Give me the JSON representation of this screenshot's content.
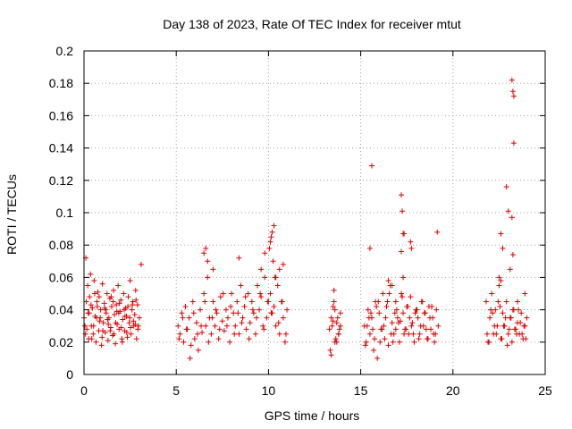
{
  "chart_data": {
    "type": "scatter",
    "title": "Day 138 of 2023, Rate Of TEC Index for receiver mtut",
    "xlabel": "GPS time / hours",
    "ylabel": "ROTI / TECUs",
    "xlim": [
      0,
      25
    ],
    "ylim": [
      0,
      0.2
    ],
    "xticks": [
      "0",
      "5",
      "10",
      "15",
      "20",
      "25"
    ],
    "yticks": [
      "0",
      "0.02",
      "0.04",
      "0.06",
      "0.08",
      "0.1",
      "0.12",
      "0.14",
      "0.16",
      "0.18",
      "0.2"
    ],
    "grid": true,
    "marker": "plus",
    "color": "#e00000",
    "series": [
      {
        "x": [
          0.0,
          0.1,
          0.15,
          0.2,
          0.25,
          0.3,
          0.35,
          0.4,
          0.45,
          0.5,
          0.55,
          0.6,
          0.65,
          0.7,
          0.75,
          0.8,
          0.85,
          0.9,
          0.95,
          1.0,
          1.05,
          1.1,
          1.15,
          1.2,
          1.25,
          1.3,
          1.35,
          1.4,
          1.45,
          1.5,
          1.55,
          1.6,
          1.65,
          1.7,
          1.75,
          1.8,
          1.85,
          1.9,
          1.95,
          2.0,
          2.05,
          2.1,
          2.15,
          2.2,
          2.25,
          2.3,
          2.35,
          2.4,
          2.45,
          2.5,
          2.55,
          2.6,
          2.65,
          2.7,
          2.75,
          2.8,
          2.85,
          2.9,
          3.0,
          3.1,
          0.05,
          0.12,
          0.28,
          0.42,
          0.58,
          0.72,
          0.88,
          1.02,
          1.18,
          1.32,
          1.48,
          1.62,
          1.78,
          1.92,
          2.08,
          2.22,
          2.38,
          2.52,
          2.68,
          2.82,
          2.95,
          0.08,
          0.22,
          0.38,
          0.52,
          0.68,
          0.82,
          0.98,
          1.12,
          1.28,
          1.42,
          1.58,
          1.72,
          1.88,
          2.02,
          2.18,
          2.32,
          2.48,
          2.62,
          2.78,
          2.92,
          5.1,
          5.2,
          5.3,
          5.4,
          5.5,
          5.6,
          5.7,
          5.8,
          5.9,
          6.0,
          6.1,
          6.2,
          6.3,
          6.4,
          6.5,
          6.6,
          6.7,
          6.8,
          6.9,
          7.0,
          7.1,
          7.2,
          7.3,
          7.4,
          7.5,
          7.6,
          7.7,
          7.8,
          7.9,
          8.0,
          8.1,
          8.2,
          8.3,
          8.4,
          8.5,
          8.6,
          8.7,
          8.8,
          8.9,
          9.0,
          9.1,
          9.2,
          9.3,
          9.4,
          9.5,
          9.6,
          9.7,
          9.8,
          9.9,
          10.0,
          10.1,
          10.2,
          10.3,
          10.4,
          10.5,
          10.6,
          10.7,
          10.8,
          10.9,
          11.0,
          5.15,
          5.35,
          5.55,
          5.75,
          5.95,
          6.15,
          6.35,
          6.55,
          6.75,
          6.95,
          7.15,
          7.35,
          7.55,
          7.75,
          7.95,
          8.15,
          8.35,
          8.55,
          8.75,
          8.95,
          9.15,
          9.35,
          9.55,
          9.75,
          9.95,
          10.15,
          10.35,
          10.55,
          10.75,
          10.95,
          6.5,
          6.6,
          6.7,
          7.0,
          8.4,
          9.6,
          9.8,
          10.1,
          10.2,
          10.3,
          10.05,
          10.15,
          10.25,
          10.4,
          10.6,
          10.8,
          13.3,
          13.4,
          13.5,
          13.6,
          13.7,
          13.8,
          13.9,
          13.35,
          13.45,
          13.55,
          13.65,
          13.75,
          13.85,
          13.4,
          13.6,
          13.8,
          13.5,
          13.7,
          13.9,
          13.55,
          15.2,
          15.3,
          15.4,
          15.5,
          15.6,
          15.7,
          15.8,
          15.9,
          16.0,
          16.1,
          16.2,
          16.3,
          16.4,
          16.5,
          16.6,
          16.7,
          16.8,
          16.9,
          17.0,
          17.1,
          17.2,
          17.3,
          17.4,
          17.5,
          17.6,
          17.7,
          17.8,
          17.9,
          18.0,
          18.1,
          18.2,
          18.3,
          18.4,
          18.5,
          18.6,
          18.7,
          18.8,
          18.9,
          19.0,
          19.1,
          19.2,
          15.25,
          15.45,
          15.65,
          15.85,
          16.05,
          16.25,
          16.45,
          16.65,
          16.85,
          17.05,
          17.25,
          17.45,
          17.65,
          17.85,
          18.05,
          18.25,
          18.45,
          18.65,
          18.85,
          19.05,
          15.35,
          15.55,
          15.75,
          15.95,
          16.15,
          16.35,
          16.55,
          16.75,
          16.95,
          17.15,
          17.35,
          17.55,
          17.75,
          17.95,
          18.15,
          18.35,
          18.55,
          18.75,
          18.95,
          19.15,
          15.5,
          15.6,
          17.2,
          17.25,
          17.3,
          17.35,
          17.7,
          17.75,
          17.2,
          17.3,
          16.5,
          16.7,
          16.9,
          21.8,
          21.9,
          22.0,
          22.1,
          22.2,
          22.3,
          22.4,
          22.5,
          22.6,
          22.7,
          22.8,
          22.9,
          23.0,
          23.1,
          23.2,
          23.3,
          23.4,
          23.5,
          23.6,
          23.7,
          23.8,
          23.9,
          24.0,
          21.85,
          22.05,
          22.25,
          22.45,
          22.65,
          22.85,
          23.05,
          23.25,
          23.45,
          23.65,
          23.85,
          21.95,
          22.15,
          22.35,
          22.55,
          22.75,
          22.95,
          23.15,
          23.35,
          23.55,
          23.75,
          23.95,
          22.6,
          22.7,
          22.9,
          23.0,
          23.2,
          23.25,
          23.3,
          23.3,
          23.2,
          23.25,
          23.1,
          22.5,
          22.6,
          23.5,
          23.9
        ],
        "y": [
          0.035,
          0.072,
          0.028,
          0.055,
          0.022,
          0.048,
          0.062,
          0.03,
          0.041,
          0.025,
          0.058,
          0.036,
          0.02,
          0.045,
          0.051,
          0.027,
          0.033,
          0.04,
          0.018,
          0.056,
          0.032,
          0.044,
          0.026,
          0.038,
          0.05,
          0.021,
          0.035,
          0.047,
          0.029,
          0.042,
          0.024,
          0.052,
          0.037,
          0.019,
          0.043,
          0.031,
          0.055,
          0.028,
          0.039,
          0.046,
          0.022,
          0.034,
          0.05,
          0.027,
          0.041,
          0.036,
          0.023,
          0.048,
          0.032,
          0.058,
          0.025,
          0.04,
          0.045,
          0.03,
          0.037,
          0.052,
          0.022,
          0.043,
          0.035,
          0.068,
          0.03,
          0.045,
          0.038,
          0.022,
          0.05,
          0.042,
          0.035,
          0.027,
          0.04,
          0.031,
          0.048,
          0.025,
          0.039,
          0.044,
          0.02,
          0.036,
          0.042,
          0.029,
          0.033,
          0.046,
          0.03,
          0.025,
          0.038,
          0.043,
          0.03,
          0.035,
          0.048,
          0.023,
          0.041,
          0.034,
          0.027,
          0.045,
          0.032,
          0.038,
          0.029,
          0.04,
          0.026,
          0.035,
          0.043,
          0.031,
          0.028,
          0.03,
          0.025,
          0.038,
          0.02,
          0.042,
          0.028,
          0.035,
          0.018,
          0.045,
          0.022,
          0.032,
          0.015,
          0.04,
          0.026,
          0.05,
          0.03,
          0.06,
          0.035,
          0.025,
          0.045,
          0.03,
          0.038,
          0.022,
          0.048,
          0.033,
          0.027,
          0.04,
          0.035,
          0.02,
          0.05,
          0.038,
          0.03,
          0.045,
          0.025,
          0.055,
          0.035,
          0.042,
          0.028,
          0.05,
          0.032,
          0.045,
          0.038,
          0.025,
          0.055,
          0.04,
          0.048,
          0.03,
          0.06,
          0.035,
          0.045,
          0.05,
          0.038,
          0.042,
          0.03,
          0.055,
          0.025,
          0.045,
          0.035,
          0.02,
          0.04,
          0.022,
          0.035,
          0.028,
          0.01,
          0.038,
          0.025,
          0.03,
          0.045,
          0.02,
          0.035,
          0.04,
          0.028,
          0.05,
          0.03,
          0.042,
          0.025,
          0.038,
          0.032,
          0.048,
          0.022,
          0.04,
          0.035,
          0.05,
          0.028,
          0.045,
          0.038,
          0.06,
          0.032,
          0.045,
          0.025,
          0.075,
          0.078,
          0.07,
          0.065,
          0.072,
          0.065,
          0.075,
          0.082,
          0.088,
          0.092,
          0.078,
          0.085,
          0.07,
          0.06,
          0.065,
          0.068,
          0.028,
          0.035,
          0.042,
          0.02,
          0.032,
          0.025,
          0.038,
          0.015,
          0.03,
          0.045,
          0.022,
          0.035,
          0.028,
          0.012,
          0.04,
          0.025,
          0.033,
          0.02,
          0.03,
          0.052,
          0.03,
          0.02,
          0.04,
          0.025,
          0.035,
          0.015,
          0.045,
          0.01,
          0.038,
          0.028,
          0.05,
          0.022,
          0.042,
          0.018,
          0.055,
          0.032,
          0.025,
          0.045,
          0.035,
          0.02,
          0.05,
          0.038,
          0.028,
          0.042,
          0.025,
          0.048,
          0.032,
          0.02,
          0.04,
          0.035,
          0.025,
          0.045,
          0.03,
          0.038,
          0.022,
          0.042,
          0.028,
          0.035,
          0.02,
          0.04,
          0.03,
          0.018,
          0.035,
          0.028,
          0.042,
          0.02,
          0.03,
          0.045,
          0.025,
          0.038,
          0.032,
          0.048,
          0.028,
          0.035,
          0.025,
          0.04,
          0.03,
          0.038,
          0.022,
          0.042,
          0.025,
          0.03,
          0.038,
          0.022,
          0.045,
          0.028,
          0.035,
          0.05,
          0.02,
          0.04,
          0.033,
          0.025,
          0.042,
          0.03,
          0.038,
          0.022,
          0.045,
          0.028,
          0.035,
          0.025,
          0.088,
          0.078,
          0.129,
          0.111,
          0.101,
          0.087,
          0.087,
          0.082,
          0.078,
          0.076,
          0.06,
          0.058,
          0.055,
          0.028,
          0.045,
          0.02,
          0.035,
          0.05,
          0.025,
          0.04,
          0.03,
          0.055,
          0.022,
          0.038,
          0.03,
          0.045,
          0.025,
          0.035,
          0.02,
          0.04,
          0.028,
          0.032,
          0.025,
          0.038,
          0.022,
          0.03,
          0.035,
          0.025,
          0.04,
          0.03,
          0.045,
          0.022,
          0.035,
          0.028,
          0.04,
          0.025,
          0.032,
          0.03,
          0.02,
          0.038,
          0.025,
          0.042,
          0.03,
          0.018,
          0.035,
          0.028,
          0.04,
          0.025,
          0.022,
          0.087,
          0.078,
          0.116,
          0.101,
          0.182,
          0.175,
          0.172,
          0.143,
          0.097,
          0.074,
          0.065,
          0.06,
          0.058,
          0.045,
          0.05
        ]
      }
    ]
  }
}
